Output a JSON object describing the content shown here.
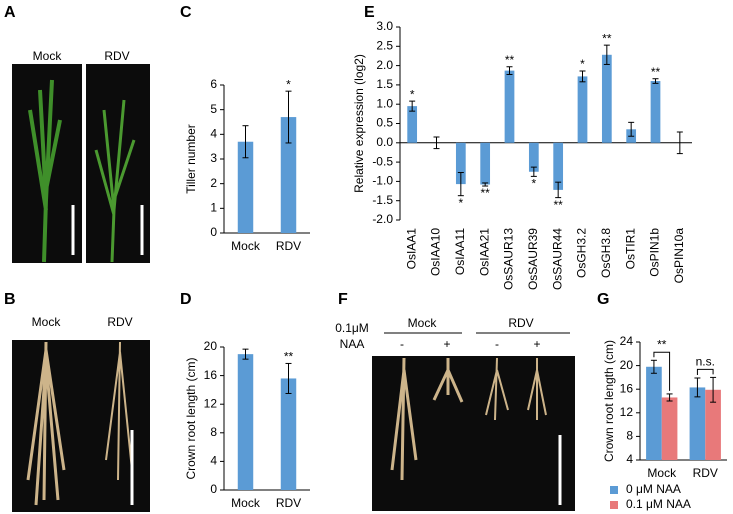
{
  "panel_letters": [
    "A",
    "B",
    "C",
    "D",
    "E",
    "F",
    "G"
  ],
  "photo_labels": {
    "A": [
      "Mock",
      "RDV"
    ],
    "B": [
      "Mock",
      "RDV"
    ],
    "F": {
      "treatment": [
        "0.1μM",
        "NAA"
      ],
      "groups": [
        "Mock",
        "RDV"
      ],
      "signs": [
        "-",
        "+",
        "-",
        "+"
      ]
    }
  },
  "chart_data": [
    {
      "type": "bar",
      "ylabel": "Tiller number",
      "categories": [
        "Mock",
        "RDV"
      ],
      "values": [
        3.7,
        4.7
      ],
      "errors": [
        0.65,
        1.05
      ],
      "significance": [
        null,
        "*"
      ],
      "color": "#5b9bd5",
      "ylim": [
        0,
        6
      ],
      "yticks": [
        0,
        1,
        2,
        3,
        4,
        5,
        6
      ]
    },
    {
      "type": "bar",
      "ylabel": "Crown root length (cm)",
      "categories": [
        "Mock",
        "RDV"
      ],
      "values": [
        19,
        15.6
      ],
      "errors": [
        0.7,
        2.1
      ],
      "significance": [
        null,
        "**"
      ],
      "color": "#5b9bd5",
      "ylim": [
        0,
        20
      ],
      "yticks": [
        0,
        4,
        8,
        12,
        16,
        20
      ]
    },
    {
      "type": "bar",
      "ylabel": "Relative expression (log2)",
      "categories": [
        "OsIAA1",
        "OsIAA10",
        "OsIAA11",
        "OsIAA21",
        "OsSAUR13",
        "OsSAUR39",
        "OsSAUR44",
        "OsGH3.2",
        "OsGH3.8",
        "OsTIR1",
        "OsPIN1b",
        "OsPIN10a"
      ],
      "values": [
        0.95,
        0.0,
        -1.07,
        -1.08,
        1.87,
        -0.75,
        -1.22,
        1.72,
        2.28,
        0.35,
        1.6,
        0.0
      ],
      "errors": [
        0.13,
        0.15,
        0.3,
        0.04,
        0.1,
        0.12,
        0.2,
        0.14,
        0.25,
        0.18,
        0.06,
        0.28
      ],
      "significance": [
        "*",
        null,
        "*",
        "**",
        "**",
        "*",
        "**",
        "*",
        "**",
        null,
        "**",
        null
      ],
      "color": "#5b9bd5",
      "ylim": [
        -2,
        3
      ],
      "yticks": [
        {
          "value": -2,
          "label": "-2.0"
        },
        {
          "value": -1.5,
          "label": "-1.5"
        },
        {
          "value": -1,
          "label": "-1.0"
        },
        {
          "value": -0.5,
          "label": "-0.5"
        },
        {
          "value": 0,
          "label": "0.0"
        },
        {
          "value": 0.5,
          "label": "0.5"
        },
        {
          "value": 1,
          "label": "1.0"
        },
        {
          "value": 1.5,
          "label": "1.5"
        },
        {
          "value": 2,
          "label": "2.0"
        },
        {
          "value": 2.5,
          "label": "2.5"
        },
        {
          "value": 3,
          "label": "3.0"
        }
      ]
    },
    {
      "type": "bar",
      "ylabel": "Crown root length (cm)",
      "categories": [
        "Mock",
        "RDV"
      ],
      "series": [
        {
          "name": "0 μM NAA",
          "color": "#5b9bd5",
          "values": [
            19.8,
            16.3
          ],
          "errors": [
            1.1,
            1.6
          ]
        },
        {
          "name": "0.1 μM NAA",
          "color": "#e8797a",
          "values": [
            14.6,
            15.9
          ],
          "errors": [
            0.6,
            2.1
          ]
        }
      ],
      "significance": [
        "**",
        "n.s."
      ],
      "ylim": [
        4,
        24
      ],
      "yticks": [
        4,
        8,
        12,
        16,
        20,
        24
      ]
    }
  ]
}
